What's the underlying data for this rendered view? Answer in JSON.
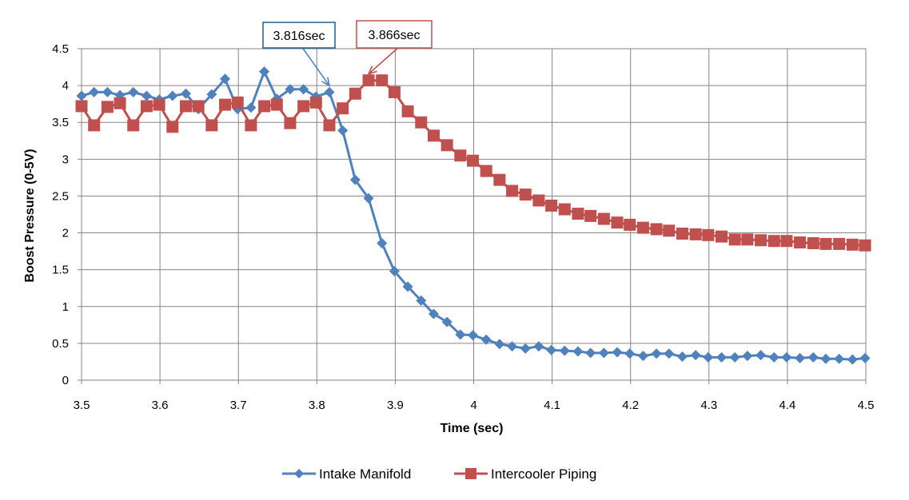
{
  "chart_data": {
    "type": "line",
    "title": "",
    "xlabel": "Time (sec)",
    "ylabel": "Boost Pressure (0-5V)",
    "xlim": [
      3.5,
      4.5
    ],
    "ylim": [
      0,
      4.5
    ],
    "xticks": [
      3.5,
      3.6,
      3.7,
      3.8,
      3.9,
      4.0,
      4.1,
      4.2,
      4.3,
      4.4,
      4.5
    ],
    "xtick_labels": [
      "3.5",
      "3.6",
      "3.7",
      "3.8",
      "3.9",
      "4",
      "4.1",
      "4.2",
      "4.3",
      "4.4",
      "4.5"
    ],
    "yticks": [
      0,
      0.5,
      1,
      1.5,
      2,
      2.5,
      3,
      3.5,
      4,
      4.5
    ],
    "ytick_labels": [
      "0",
      "0.5",
      "1",
      "1.5",
      "2",
      "2.5",
      "3",
      "3.5",
      "4",
      "4.5"
    ],
    "grid": true,
    "legend_position": "bottom",
    "series": [
      {
        "name": "Intake Manifold",
        "color": "#4F81BD",
        "marker": "diamond",
        "x": [
          3.5,
          3.516,
          3.533,
          3.549,
          3.566,
          3.583,
          3.599,
          3.616,
          3.633,
          3.649,
          3.666,
          3.683,
          3.699,
          3.716,
          3.733,
          3.749,
          3.766,
          3.783,
          3.799,
          3.816,
          3.833,
          3.849,
          3.866,
          3.883,
          3.899,
          3.916,
          3.933,
          3.949,
          3.966,
          3.983,
          3.999,
          4.016,
          4.033,
          4.049,
          4.066,
          4.083,
          4.099,
          4.116,
          4.133,
          4.149,
          4.166,
          4.183,
          4.199,
          4.216,
          4.233,
          4.249,
          4.266,
          4.283,
          4.299,
          4.316,
          4.333,
          4.349,
          4.366,
          4.383,
          4.399,
          4.416,
          4.433,
          4.449,
          4.466,
          4.483,
          4.499
        ],
        "values": [
          3.86,
          3.91,
          3.91,
          3.87,
          3.91,
          3.86,
          3.81,
          3.86,
          3.89,
          3.68,
          3.88,
          4.09,
          3.68,
          3.7,
          4.19,
          3.82,
          3.95,
          3.95,
          3.85,
          3.91,
          3.39,
          2.72,
          2.47,
          1.86,
          1.48,
          1.27,
          1.08,
          0.9,
          0.79,
          0.62,
          0.61,
          0.55,
          0.49,
          0.46,
          0.43,
          0.46,
          0.41,
          0.4,
          0.39,
          0.37,
          0.37,
          0.38,
          0.36,
          0.33,
          0.36,
          0.36,
          0.32,
          0.34,
          0.31,
          0.31,
          0.31,
          0.33,
          0.34,
          0.31,
          0.31,
          0.3,
          0.31,
          0.29,
          0.29,
          0.28,
          0.3
        ]
      },
      {
        "name": "Intercooler Piping",
        "color": "#C0504D",
        "marker": "square",
        "x": [
          3.5,
          3.516,
          3.533,
          3.549,
          3.566,
          3.583,
          3.599,
          3.616,
          3.633,
          3.649,
          3.666,
          3.683,
          3.699,
          3.716,
          3.733,
          3.749,
          3.766,
          3.783,
          3.799,
          3.816,
          3.833,
          3.849,
          3.866,
          3.883,
          3.899,
          3.916,
          3.933,
          3.949,
          3.966,
          3.983,
          3.999,
          4.016,
          4.033,
          4.049,
          4.066,
          4.083,
          4.099,
          4.116,
          4.133,
          4.149,
          4.166,
          4.183,
          4.199,
          4.216,
          4.233,
          4.249,
          4.266,
          4.283,
          4.299,
          4.316,
          4.333,
          4.349,
          4.366,
          4.383,
          4.399,
          4.416,
          4.433,
          4.449,
          4.466,
          4.483,
          4.499
        ],
        "values": [
          3.72,
          3.46,
          3.71,
          3.76,
          3.46,
          3.72,
          3.74,
          3.44,
          3.72,
          3.72,
          3.46,
          3.74,
          3.77,
          3.46,
          3.72,
          3.74,
          3.49,
          3.72,
          3.77,
          3.46,
          3.69,
          3.89,
          4.07,
          4.07,
          3.91,
          3.65,
          3.5,
          3.32,
          3.19,
          3.05,
          2.98,
          2.84,
          2.72,
          2.57,
          2.52,
          2.44,
          2.37,
          2.32,
          2.26,
          2.23,
          2.19,
          2.14,
          2.11,
          2.07,
          2.05,
          2.03,
          1.99,
          1.98,
          1.97,
          1.95,
          1.91,
          1.91,
          1.9,
          1.89,
          1.89,
          1.87,
          1.86,
          1.85,
          1.85,
          1.84,
          1.83
        ]
      }
    ],
    "annotations": [
      {
        "text": "3.816sec",
        "x": 3.816,
        "y": 3.91,
        "series": "Intake Manifold",
        "color": "#1F5F8B"
      },
      {
        "text": "3.866sec",
        "x": 3.866,
        "y": 4.07,
        "series": "Intercooler Piping",
        "color": "#C0504D"
      }
    ]
  }
}
